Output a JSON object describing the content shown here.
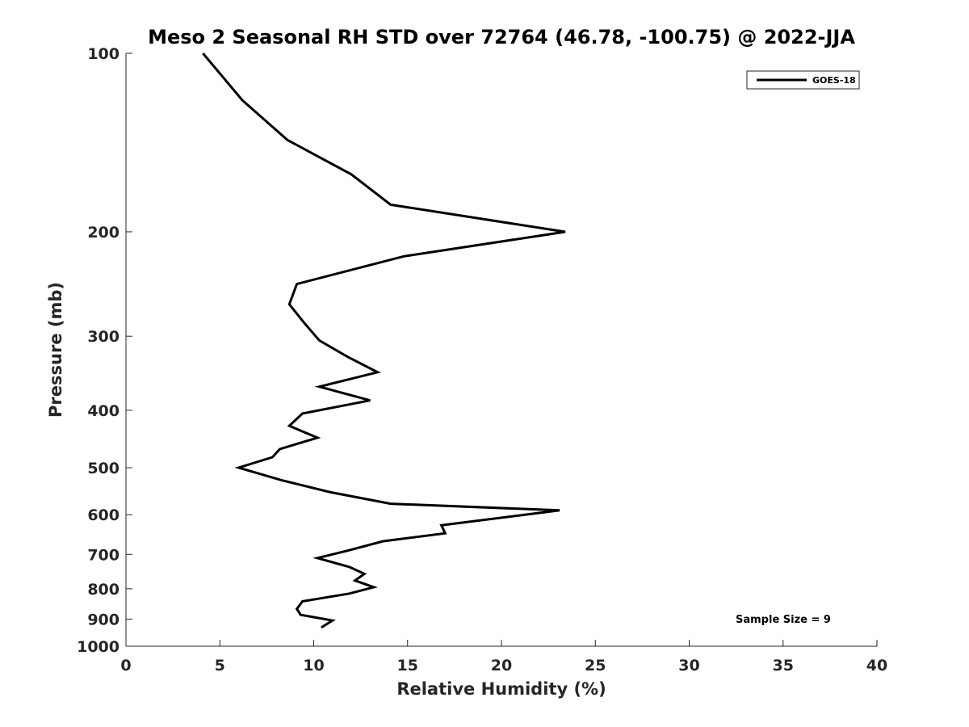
{
  "chart_data": {
    "type": "line",
    "title": "Meso 2 Seasonal RH STD over 72764 (46.78, -100.75) @ 2022-JJA",
    "xlabel": "Relative Humidity (%)",
    "ylabel": "Pressure (mb)",
    "xlim": [
      0,
      40
    ],
    "ylim": [
      100,
      1000
    ],
    "y_scale": "log",
    "y_reversed": true,
    "xticks": [
      0,
      5,
      10,
      15,
      20,
      25,
      30,
      35,
      40
    ],
    "yticks": [
      100,
      200,
      300,
      400,
      500,
      600,
      700,
      800,
      900,
      1000
    ],
    "grid": false,
    "legend": {
      "placement": "top-right",
      "entries": [
        "GOES-18"
      ]
    },
    "annotation": "Sample Size = 9",
    "series": [
      {
        "name": "GOES-18",
        "color": "#000000",
        "x": [
          4.1,
          6.2,
          8.6,
          12.0,
          14.1,
          23.4,
          14.8,
          9.1,
          8.7,
          9.5,
          10.3,
          11.8,
          13.4,
          10.3,
          13.0,
          9.4,
          8.7,
          10.2,
          8.2,
          7.8,
          6.0,
          8.3,
          10.9,
          14.1,
          23.1,
          16.8,
          17.0,
          13.7,
          11.8,
          10.2,
          11.9,
          12.7,
          12.2,
          13.2,
          11.9,
          9.4,
          9.1,
          9.3,
          11.0,
          10.4
        ],
        "y": [
          100,
          120,
          140,
          160,
          180,
          200,
          220,
          245,
          265,
          285,
          305,
          325,
          345,
          365,
          385,
          405,
          425,
          445,
          465,
          480,
          500,
          525,
          550,
          575,
          590,
          625,
          645,
          665,
          690,
          710,
          735,
          755,
          775,
          795,
          815,
          840,
          865,
          885,
          905,
          930
        ]
      }
    ]
  }
}
